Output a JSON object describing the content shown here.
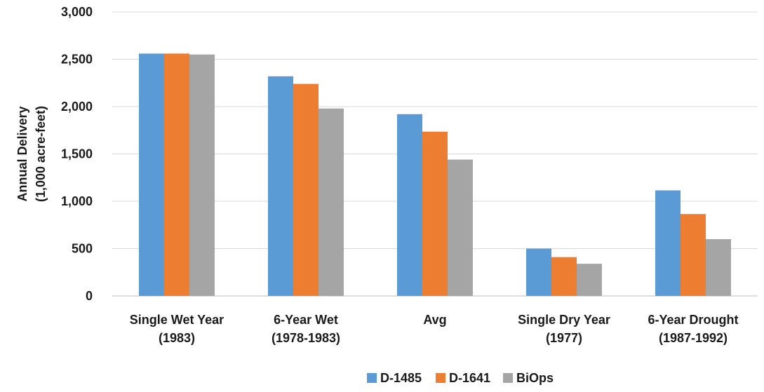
{
  "chart_data": {
    "type": "bar",
    "title": "",
    "xlabel": "",
    "ylabel": [
      "Annual Delivery",
      "(1,000 acre-feet)"
    ],
    "ylim": [
      0,
      3000
    ],
    "yticks": [
      0,
      500,
      1000,
      1500,
      2000,
      2500,
      3000
    ],
    "ytick_labels": [
      "0",
      "500",
      "1,000",
      "1,500",
      "2,000",
      "2,500",
      "3,000"
    ],
    "grid": true,
    "legend_position": "bottom",
    "categories": [
      [
        "Single Wet Year",
        "(1983)"
      ],
      [
        "6-Year Wet",
        "(1978-1983)"
      ],
      [
        "Avg"
      ],
      [
        "Single Dry Year",
        "(1977)"
      ],
      [
        "6-Year Drought",
        "(1987-1992)"
      ]
    ],
    "series": [
      {
        "name": "D-1485",
        "color": "#5b9bd5",
        "values": [
          2560,
          2320,
          1920,
          500,
          1115
        ]
      },
      {
        "name": "D-1641",
        "color": "#ed7d31",
        "values": [
          2560,
          2240,
          1735,
          410,
          865
        ]
      },
      {
        "name": "BiOps",
        "color": "#a5a5a5",
        "values": [
          2550,
          1980,
          1440,
          340,
          600
        ]
      }
    ]
  }
}
